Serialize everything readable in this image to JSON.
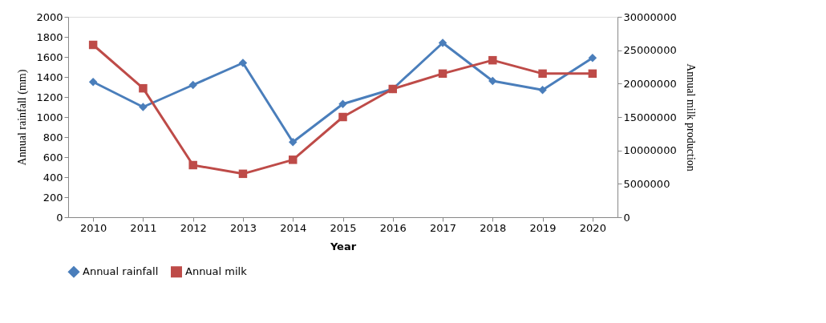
{
  "chart_data": {
    "type": "line",
    "xlabel": "Year",
    "ylabel": "Annual rainfall (mm)",
    "y2label": "Annual milk production",
    "categories": [
      "2010",
      "2011",
      "2012",
      "2013",
      "2014",
      "2015",
      "2016",
      "2017",
      "2018",
      "2019",
      "2020"
    ],
    "series": [
      {
        "name": "Annual rainfall",
        "color": "#4a7ebb",
        "marker": "diamond",
        "values": [
          1350,
          1100,
          1320,
          1540,
          750,
          1130,
          1280,
          1740,
          1360,
          1270,
          1590
        ]
      },
      {
        "name": "Annual milk",
        "color": "#be4b48",
        "marker": "square",
        "axis": "y2",
        "values": [
          25800000,
          19300000,
          7800000,
          6500000,
          8600000,
          15000000,
          19200000,
          21500000,
          23500000,
          21500000,
          21500000
        ]
      }
    ],
    "ylim": [
      0,
      2000
    ],
    "yticks": [
      0,
      200,
      400,
      600,
      800,
      1000,
      1200,
      1400,
      1600,
      1800,
      2000
    ],
    "y2lim": [
      0,
      30000000
    ],
    "y2ticks": [
      0,
      5000000,
      10000000,
      15000000,
      20000000,
      25000000,
      30000000
    ],
    "grid": false,
    "legend": "bottom",
    "line_style": "solid"
  }
}
